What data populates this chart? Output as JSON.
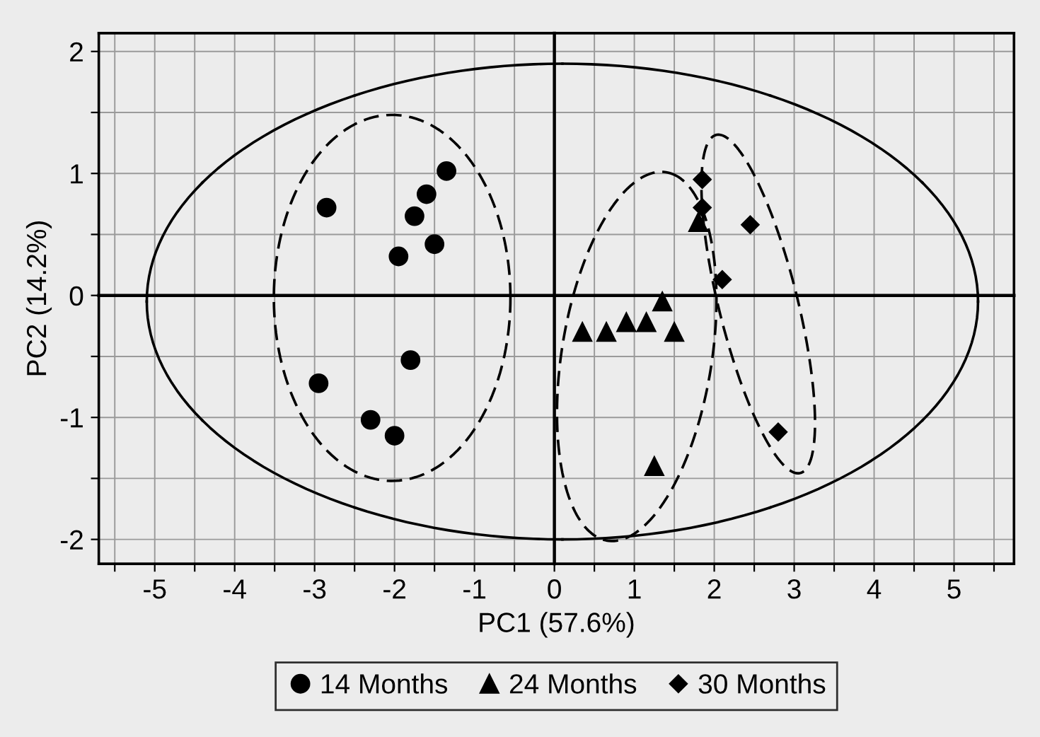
{
  "chart_data": {
    "type": "scatter",
    "xlabel": "PC1 (57.6%)",
    "ylabel": "PC2 (14.2%)",
    "xlim": [
      -5.7,
      5.75
    ],
    "ylim": [
      -2.2,
      2.15
    ],
    "xticks": [
      {
        "value": -5.5,
        "label": null
      },
      -5,
      {
        "value": -4.5,
        "label": null
      },
      -4,
      {
        "value": -3.5,
        "label": null
      },
      -3,
      {
        "value": -2.5,
        "label": null
      },
      -2,
      {
        "value": -1.5,
        "label": null
      },
      -1,
      {
        "value": -0.5,
        "label": null
      },
      0,
      {
        "value": 0.5,
        "label": null
      },
      1,
      {
        "value": 1.5,
        "label": null
      },
      2,
      {
        "value": 2.5,
        "label": null
      },
      3,
      {
        "value": 3.5,
        "label": null
      },
      4,
      {
        "value": 4.5,
        "label": null
      },
      5,
      {
        "value": 5.5,
        "label": null
      }
    ],
    "yticks": [
      -2,
      {
        "value": -1.5,
        "label": null
      },
      -1,
      {
        "value": -0.5,
        "label": null
      },
      0,
      {
        "value": 0.5,
        "label": null
      },
      1,
      {
        "value": 1.5,
        "label": null
      },
      2
    ],
    "grid": true,
    "legend": "bottom",
    "series": [
      {
        "name": "14 Months",
        "color": "#000000",
        "marker": "circle",
        "x": [
          -2.85,
          -1.35,
          -1.6,
          -1.75,
          -1.5,
          -1.95,
          -1.8,
          -2.95,
          -2.3,
          -2.0
        ],
        "values": [
          0.72,
          1.02,
          0.83,
          0.65,
          0.42,
          0.32,
          -0.53,
          -0.72,
          -1.02,
          -1.15
        ]
      },
      {
        "name": "24 Months",
        "color": "#000000",
        "marker": "triangle",
        "x": [
          0.35,
          0.65,
          0.9,
          1.15,
          1.35,
          1.5,
          1.25,
          1.8
        ],
        "values": [
          -0.3,
          -0.3,
          -0.22,
          -0.22,
          -0.05,
          -0.3,
          -1.4,
          0.6
        ]
      },
      {
        "name": "30 Months",
        "color": "#000000",
        "marker": "diamond",
        "x": [
          1.85,
          1.85,
          2.45,
          2.1,
          2.8
        ],
        "values": [
          0.95,
          0.72,
          0.58,
          0.13,
          -1.12
        ]
      }
    ]
  }
}
